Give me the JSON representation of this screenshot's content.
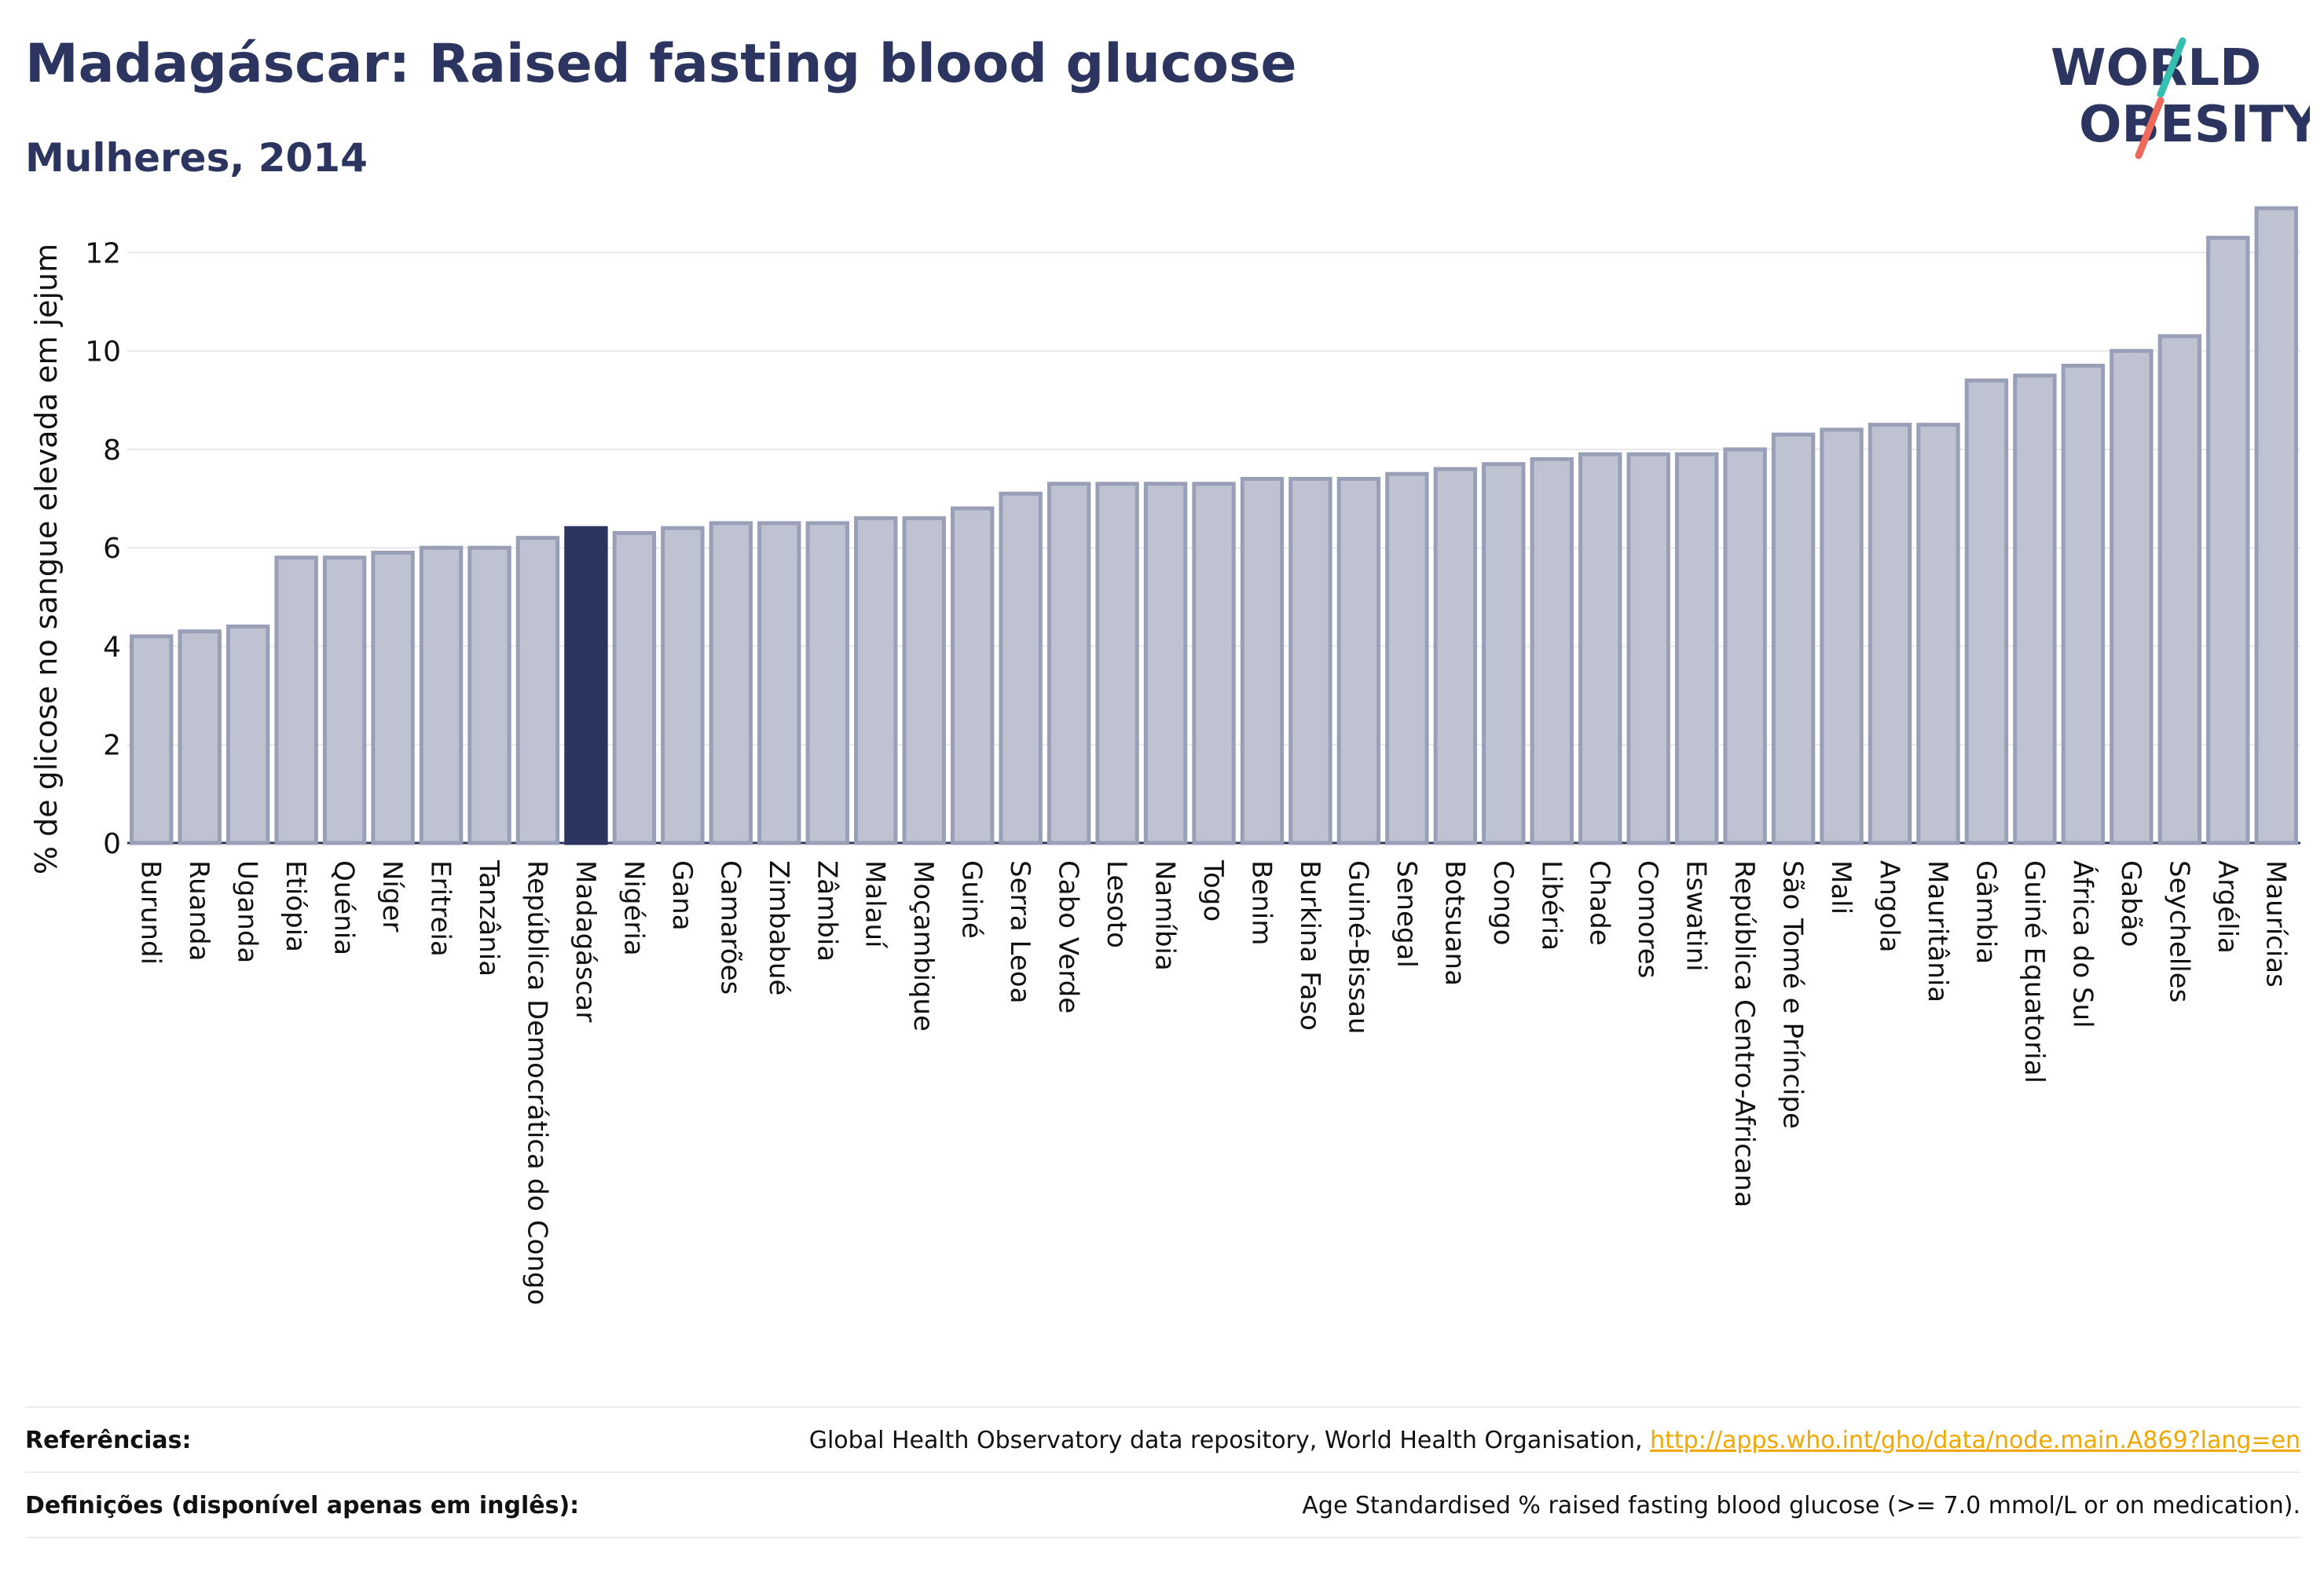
{
  "header": {
    "title": "Madagáscar: Raised fasting blood glucose",
    "subtitle": "Mulheres, 2014"
  },
  "logo": {
    "line1": "WORLD",
    "line2": "OBESITY"
  },
  "colors": {
    "bar_fill": "#bfc3d1",
    "bar_stroke": "#9a9fb8",
    "highlight": "#2b3560",
    "text": "#2b3560",
    "grid": "#e6e8ee",
    "link": "#f0a800",
    "logo_teal": "#35bfb0",
    "logo_coral": "#ef6a5a"
  },
  "chart_data": {
    "type": "bar",
    "ylabel": "% de glicose no sangue elevada em jejum",
    "ylim": [
      0,
      13.3
    ],
    "yticks": [
      0,
      2,
      4,
      6,
      8,
      10,
      12
    ],
    "grid": true,
    "highlight": "Madagáscar",
    "categories": [
      "Burundi",
      "Ruanda",
      "Uganda",
      "Etiópia",
      "Quénia",
      "Níger",
      "Eritreia",
      "Tanzânia",
      "República Democrática do Congo",
      "Madagáscar",
      "Nigéria",
      "Gana",
      "Camarões",
      "Zimbabué",
      "Zâmbia",
      "Malauí",
      "Moçambique",
      "Guiné",
      "Serra Leoa",
      "Cabo Verde",
      "Lesoto",
      "Namíbia",
      "Togo",
      "Benim",
      "Burkina Faso",
      "Guiné-Bissau",
      "Senegal",
      "Botsuana",
      "Congo",
      "Libéria",
      "Chade",
      "Comores",
      "Eswatini",
      "República Centro-Africana",
      "São Tomé e Príncipe",
      "Mali",
      "Angola",
      "Mauritânia",
      "Gâmbia",
      "Guiné Equatorial",
      "África do Sul",
      "Gabão",
      "Seychelles",
      "Argélia",
      "Maurícias"
    ],
    "values": [
      4.2,
      4.3,
      4.4,
      5.8,
      5.8,
      5.9,
      6.0,
      6.0,
      6.2,
      6.4,
      6.3,
      6.4,
      6.5,
      6.5,
      6.5,
      6.6,
      6.6,
      6.8,
      7.1,
      7.3,
      7.3,
      7.3,
      7.3,
      7.4,
      7.4,
      7.4,
      7.5,
      7.6,
      7.7,
      7.8,
      7.9,
      7.9,
      7.9,
      8.0,
      8.3,
      8.4,
      8.5,
      8.5,
      9.4,
      9.5,
      9.7,
      10.0,
      10.3,
      12.3,
      12.9
    ]
  },
  "footer": {
    "references_label": "Referências:",
    "references_text": "Global Health Observatory data repository, World Health Organisation,",
    "references_link": "http://apps.who.int/gho/data/node.main.A869?lang=en",
    "definitions_label": "Definições (disponível apenas em inglês):",
    "definitions_text": "Age Standardised % raised fasting blood glucose (>= 7.0 mmol/L or on medication)."
  }
}
